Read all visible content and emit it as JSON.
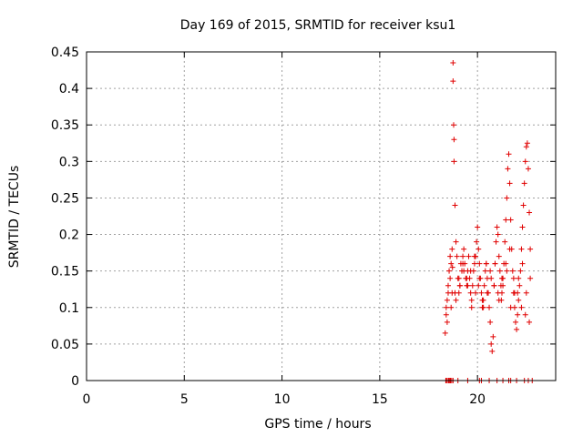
{
  "chart_data": {
    "type": "scatter",
    "title": "Day 169 of 2015, SRMTID for receiver ksu1",
    "xlabel": "GPS time / hours",
    "ylabel": "SRMTID / TECUs",
    "xlim": [
      0,
      24
    ],
    "ylim": [
      0,
      0.45
    ],
    "xticks": [
      0,
      5,
      10,
      15,
      20
    ],
    "xtick_labels": [
      "0",
      "5",
      "10",
      "15",
      "20"
    ],
    "yticks": [
      0,
      0.05,
      0.1,
      0.15,
      0.2,
      0.25,
      0.3,
      0.35,
      0.4,
      0.45
    ],
    "ytick_labels": [
      "0",
      "0.05",
      "0.1",
      "0.15",
      "0.2",
      "0.25",
      "0.3",
      "0.35",
      "0.4",
      "0.45"
    ],
    "grid": true,
    "marker": "plus",
    "color": "#e00000",
    "series": [
      {
        "name": "SRMTID",
        "x": [
          18.35,
          18.4,
          18.45,
          18.5,
          18.55,
          18.6,
          18.65,
          18.7,
          18.72,
          18.75,
          18.75,
          18.78,
          18.8,
          18.8,
          18.85,
          18.9,
          18.95,
          19.0,
          19.05,
          19.1,
          19.15,
          19.2,
          19.25,
          19.3,
          19.35,
          19.4,
          19.45,
          19.5,
          19.55,
          19.6,
          19.65,
          19.7,
          19.75,
          19.8,
          19.85,
          19.9,
          19.95,
          20.0,
          20.05,
          20.1,
          20.15,
          20.2,
          20.25,
          20.3,
          20.35,
          20.4,
          20.45,
          20.5,
          20.55,
          20.6,
          20.65,
          20.7,
          20.75,
          20.8,
          20.85,
          20.9,
          20.95,
          21.0,
          21.05,
          21.1,
          21.15,
          21.2,
          21.22,
          21.25,
          21.3,
          21.35,
          21.4,
          21.45,
          21.5,
          21.55,
          21.6,
          21.65,
          21.7,
          21.75,
          21.8,
          21.85,
          21.9,
          21.95,
          22.0,
          22.05,
          22.1,
          22.15,
          22.2,
          22.25,
          22.3,
          22.35,
          22.4,
          22.45,
          22.5,
          22.55,
          22.6,
          22.65,
          22.7,
          18.4,
          18.5,
          18.6,
          18.7,
          18.9,
          19.1,
          19.3,
          19.5,
          19.7,
          19.9,
          20.1,
          20.3,
          20.5,
          20.7,
          20.9,
          21.1,
          21.3,
          21.5,
          21.7,
          21.9,
          22.1,
          22.3,
          22.5,
          22.7,
          18.45,
          18.65,
          18.85,
          19.05,
          19.25,
          19.45,
          19.65,
          19.85,
          20.05,
          20.25,
          20.45,
          20.65,
          20.85,
          21.05,
          21.25,
          21.45,
          21.65,
          21.85,
          22.05,
          22.25,
          22.45,
          22.65,
          18.38,
          18.42,
          18.5,
          18.55,
          18.62,
          18.68,
          18.4,
          18.5,
          18.6,
          18.75,
          19.0,
          19.5,
          20.1,
          20.2,
          20.6,
          21.0,
          21.3,
          21.6,
          21.7,
          22.0,
          22.4,
          22.6,
          22.8
        ],
        "y": [
          0.065,
          0.09,
          0.11,
          0.13,
          0.15,
          0.17,
          0.16,
          0.18,
          0.155,
          0.435,
          0.41,
          0.35,
          0.33,
          0.3,
          0.24,
          0.19,
          0.17,
          0.14,
          0.12,
          0.13,
          0.16,
          0.15,
          0.17,
          0.18,
          0.16,
          0.14,
          0.13,
          0.15,
          0.17,
          0.14,
          0.12,
          0.1,
          0.13,
          0.15,
          0.16,
          0.17,
          0.19,
          0.21,
          0.18,
          0.16,
          0.14,
          0.12,
          0.1,
          0.11,
          0.13,
          0.15,
          0.16,
          0.14,
          0.12,
          0.1,
          0.08,
          0.05,
          0.04,
          0.06,
          0.13,
          0.16,
          0.19,
          0.21,
          0.2,
          0.17,
          0.15,
          0.13,
          0.11,
          0.12,
          0.14,
          0.16,
          0.19,
          0.22,
          0.25,
          0.29,
          0.31,
          0.27,
          0.22,
          0.18,
          0.15,
          0.12,
          0.1,
          0.08,
          0.07,
          0.09,
          0.11,
          0.13,
          0.15,
          0.18,
          0.21,
          0.24,
          0.27,
          0.3,
          0.32,
          0.325,
          0.29,
          0.23,
          0.18,
          0.1,
          0.12,
          0.14,
          0.12,
          0.11,
          0.13,
          0.15,
          0.13,
          0.11,
          0.12,
          0.14,
          0.1,
          0.12,
          0.14,
          0.16,
          0.11,
          0.13,
          0.15,
          0.1,
          0.12,
          0.14,
          0.16,
          0.12,
          0.14,
          0.08,
          0.1,
          0.12,
          0.14,
          0.16,
          0.14,
          0.15,
          0.17,
          0.13,
          0.11,
          0.16,
          0.15,
          0.13,
          0.12,
          0.14,
          0.16,
          0.18,
          0.14,
          0.12,
          0.1,
          0.09,
          0.08,
          0,
          0,
          0,
          0,
          0,
          0,
          0,
          0,
          0,
          0,
          0,
          0,
          0,
          0,
          0,
          0,
          0,
          0,
          0,
          0,
          0,
          0,
          0
        ]
      }
    ]
  }
}
